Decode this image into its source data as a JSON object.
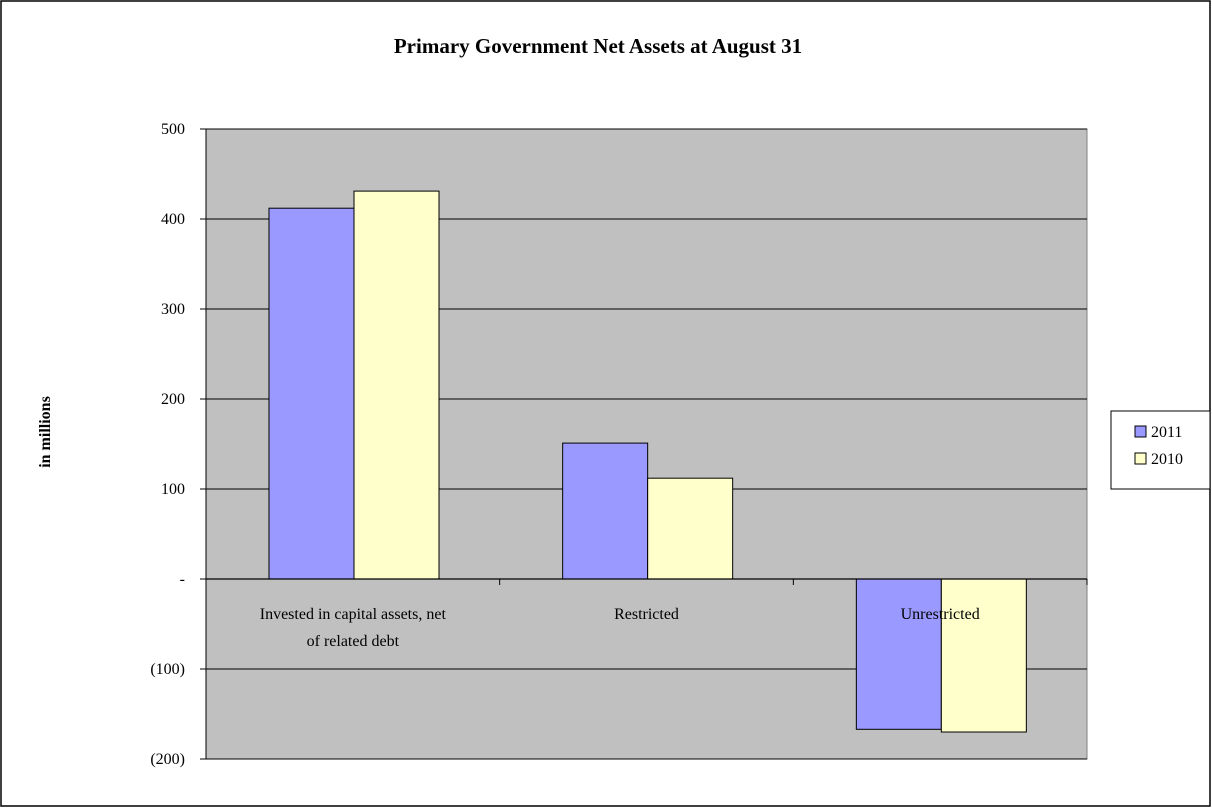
{
  "colors": {
    "plot_area": "#c0c0c0",
    "series_2011": "#9999ff",
    "series_2010": "#ffffcc",
    "bar_outline": "#000000",
    "gridline": "#000000",
    "page": "#ffffff"
  },
  "chart_data": {
    "type": "bar",
    "title": "Primary Government Net Assets at August 31",
    "ylabel": "in millions",
    "xlabel": "",
    "categories": [
      [
        "Invested in capital assets, net",
        "of related debt"
      ],
      [
        "Restricted"
      ],
      [
        "Unrestricted"
      ]
    ],
    "series": [
      {
        "name": "2011",
        "values": [
          412,
          151,
          -167
        ],
        "color": "#9999ff"
      },
      {
        "name": "2010",
        "values": [
          431,
          112,
          -170
        ],
        "color": "#ffffcc"
      }
    ],
    "ylim": [
      -200,
      500
    ],
    "yticks": [
      {
        "value": 500,
        "label": "500"
      },
      {
        "value": 400,
        "label": "400"
      },
      {
        "value": 300,
        "label": "300"
      },
      {
        "value": 200,
        "label": "200"
      },
      {
        "value": 100,
        "label": "100"
      },
      {
        "value": 0,
        "label": "-"
      },
      {
        "value": -100,
        "label": "(100)"
      },
      {
        "value": -200,
        "label": "(200)"
      }
    ],
    "grid": true,
    "legend": "right"
  }
}
